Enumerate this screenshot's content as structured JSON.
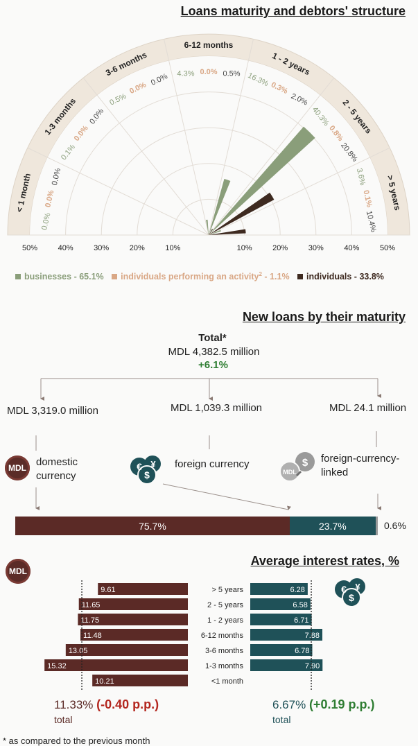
{
  "colors": {
    "businesses": "#8a9e7a",
    "individuals_activity": "#d9a785",
    "individuals": "#3e2a20",
    "domestic": "#5b2a26",
    "foreign": "#1f5158",
    "linked": "#9a9a9a",
    "positive": "#2e7d32",
    "negative": "#b3261e"
  },
  "titles": {
    "maturity": "Loans maturity and debtors' structure",
    "new_loans": "New loans by their maturity",
    "rates": "Average interest rates, %"
  },
  "chart_data": [
    {
      "type": "polar-bar",
      "title": "Loans maturity and debtors' structure",
      "categories": [
        "< 1 month",
        "1-3 months",
        "3-6 months",
        "6-12 months",
        "1 - 2 years",
        "2 - 5 years",
        "> 5 years"
      ],
      "series": [
        {
          "name": "businesses - 65.1%",
          "values": [
            0.0,
            0.1,
            0.5,
            4.3,
            16.3,
            40.3,
            3.6
          ],
          "labels": [
            "0.0%",
            "0.1%",
            "0.5%",
            "4.3%",
            "16.3%",
            "40.3%",
            "3.6%"
          ]
        },
        {
          "name": "individuals performing an activity",
          "legend_suffix": " - 1.1%",
          "superscript": "2",
          "values": [
            0.0,
            0.0,
            0.0,
            0.0,
            0.3,
            0.8,
            0.1
          ],
          "labels": [
            "0.0%",
            "0.0%",
            "0.0%",
            "0.0%",
            "0.3%",
            "0.8%",
            "0.1%"
          ]
        },
        {
          "name": "individuals - 33.8%",
          "values": [
            0.0,
            0.0,
            0.0,
            0.5,
            2.0,
            20.8,
            10.4
          ],
          "labels": [
            "0.0%",
            "0.0%",
            "0.0%",
            "0.5%",
            "2.0%",
            "20.8%",
            "10.4%"
          ]
        }
      ],
      "radial_ticks": [
        "50%",
        "40%",
        "30%",
        "20%",
        "10%",
        "10%",
        "20%",
        "30%",
        "40%",
        "50%"
      ],
      "rmax": 50,
      "legend_position": "bottom"
    },
    {
      "type": "bar",
      "title": "Average interest rates, %",
      "categories": [
        "> 5 years",
        "2 - 5 years",
        "1 - 2 years",
        "6-12 months",
        "3-6 months",
        "1-3 months",
        "<1 month"
      ],
      "series": [
        {
          "name": "MDL",
          "values": [
            9.61,
            11.65,
            11.75,
            11.48,
            13.05,
            15.32,
            10.21
          ],
          "labels": [
            "9.61",
            "11.65",
            "11.75",
            "11.48",
            "13.05",
            "15.32",
            "10.21"
          ]
        },
        {
          "name": "foreign currency",
          "values": [
            6.28,
            6.58,
            6.71,
            7.88,
            6.78,
            7.9,
            null
          ],
          "labels": [
            "6.28",
            "6.58",
            "6.71",
            "7.88",
            "6.78",
            "7.90",
            ""
          ]
        }
      ],
      "reference": {
        "mdl_total": 11.33,
        "fc_total": 6.67
      }
    }
  ],
  "new_loans": {
    "total_label": "Total*",
    "total_value": "MDL 4,382.5 million",
    "total_change": "+6.1%",
    "domestic": {
      "amount": "MDL 3,319.0 million",
      "label": "domestic currency",
      "share": "75.7%",
      "share_value": 75.7
    },
    "foreign": {
      "amount": "MDL 1,039.3 million",
      "label": "foreign currency",
      "share": "23.7%",
      "share_value": 23.7
    },
    "linked": {
      "amount": "MDL 24.1 million",
      "label": "foreign-currency-linked",
      "share": "0.6%",
      "share_value": 0.6
    }
  },
  "rates": {
    "mdl_badge": "MDL",
    "mdl_total": "11.33%",
    "mdl_change": "(-0.40 p.p.)",
    "fc_total": "6.67%",
    "fc_change": "(+0.19 p.p.)",
    "total_word": "total"
  },
  "icons": {
    "mdl": "mdl-coin-icon",
    "fx": "euro-yen-dollar-coins-icon",
    "linked": "dollar-link-coins-icon"
  },
  "footnote": "* as compared to the previous month"
}
